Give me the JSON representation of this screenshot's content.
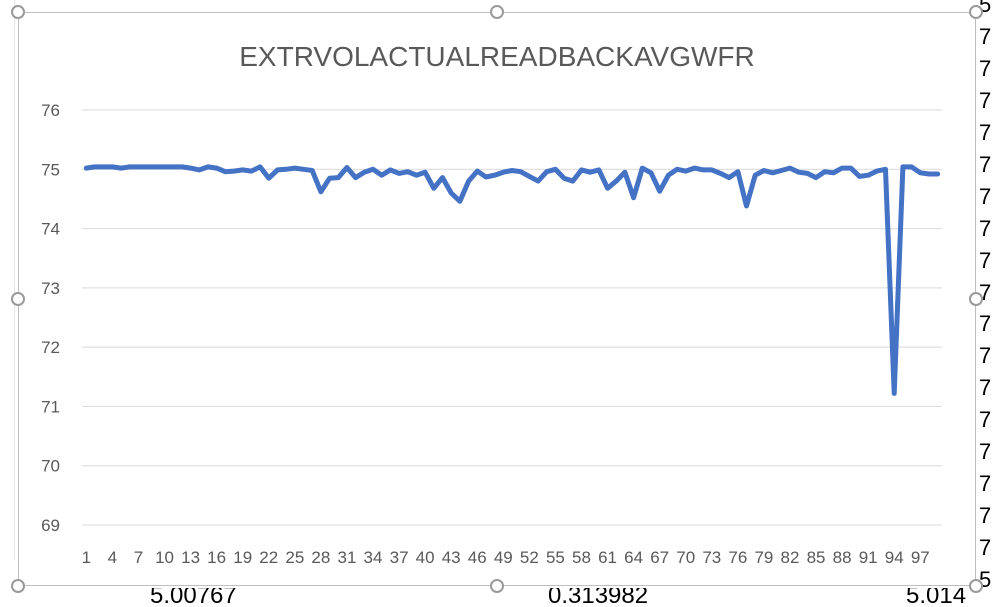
{
  "background_sheet": {
    "bottom_cells": [
      "5.00767",
      "0.313982",
      "5.014"
    ],
    "right_column_fragments": [
      "5",
      "7",
      "7",
      "7",
      "7",
      "7",
      "7",
      "7",
      "7",
      "7",
      "7",
      "7",
      "7",
      "7",
      "7",
      "7",
      "7",
      "7",
      "5"
    ]
  },
  "chart_data": {
    "type": "line",
    "title": "EXTRVOLACTUALREADBACKAVGWFR",
    "xlabel": "",
    "ylabel": "",
    "ylim": [
      69,
      76
    ],
    "yticks": [
      69,
      70,
      71,
      72,
      73,
      74,
      75,
      76
    ],
    "grid": true,
    "legend": "none",
    "line_color": "#4472C4",
    "x_tick_labels": [
      "1",
      "4",
      "7",
      "10",
      "13",
      "16",
      "19",
      "22",
      "25",
      "28",
      "31",
      "34",
      "37",
      "40",
      "43",
      "46",
      "49",
      "52",
      "55",
      "58",
      "61",
      "64",
      "67",
      "70",
      "73",
      "76",
      "79",
      "82",
      "85",
      "88",
      "91",
      "94",
      "97"
    ],
    "x": [
      1,
      2,
      3,
      4,
      5,
      6,
      7,
      8,
      9,
      10,
      11,
      12,
      13,
      14,
      15,
      16,
      17,
      18,
      19,
      20,
      21,
      22,
      23,
      24,
      25,
      26,
      27,
      28,
      29,
      30,
      31,
      32,
      33,
      34,
      35,
      36,
      37,
      38,
      39,
      40,
      41,
      42,
      43,
      44,
      45,
      46,
      47,
      48,
      49,
      50,
      51,
      52,
      53,
      54,
      55,
      56,
      57,
      58,
      59,
      60,
      61,
      62,
      63,
      64,
      65,
      66,
      67,
      68,
      69,
      70,
      71,
      72,
      73,
      74,
      75,
      76,
      77,
      78,
      79,
      80,
      81,
      82,
      83,
      84,
      85,
      86,
      87,
      88,
      89,
      90,
      91,
      92,
      93,
      94,
      95,
      96,
      97,
      98,
      99
    ],
    "series": [
      {
        "values": [
          75.02,
          75.04,
          75.04,
          75.04,
          75.02,
          75.04,
          75.04,
          75.04,
          75.04,
          75.04,
          75.04,
          75.04,
          75.02,
          74.99,
          75.04,
          75.02,
          74.96,
          74.97,
          74.99,
          74.97,
          75.04,
          74.85,
          74.99,
          75.0,
          75.02,
          75.0,
          74.98,
          74.62,
          74.85,
          74.86,
          75.03,
          74.86,
          74.95,
          75.0,
          74.9,
          74.99,
          74.93,
          74.96,
          74.9,
          74.95,
          74.68,
          74.86,
          74.6,
          74.46,
          74.8,
          74.97,
          74.87,
          74.9,
          74.95,
          74.98,
          74.96,
          74.88,
          74.8,
          74.96,
          75.0,
          74.85,
          74.8,
          74.99,
          74.95,
          74.99,
          74.68,
          74.8,
          74.95,
          74.52,
          75.02,
          74.94,
          74.63,
          74.9,
          75.0,
          74.97,
          75.02,
          74.99,
          74.99,
          74.93,
          74.86,
          74.96,
          74.38,
          74.9,
          74.98,
          74.94,
          74.98,
          75.02,
          74.95,
          74.93,
          74.86,
          74.96,
          74.94,
          75.02,
          75.02,
          74.88,
          74.9,
          74.97,
          75.0,
          71.22,
          75.04,
          75.04,
          74.94,
          74.92,
          74.92
        ]
      }
    ]
  }
}
